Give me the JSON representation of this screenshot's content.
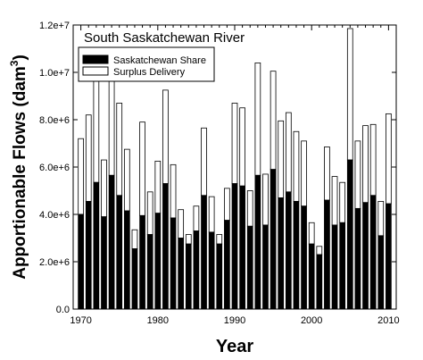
{
  "chart_data": {
    "type": "bar",
    "stacked": true,
    "title": "South Saskatchewan River",
    "xlabel": "Year",
    "ylabel_main": "Apportionable Flows (dam",
    "ylabel_sup": "3",
    "ylabel_end": ")",
    "xlim": [
      1969,
      2011
    ],
    "ylim": [
      0,
      12000000
    ],
    "x_ticks": [
      1970,
      1980,
      1990,
      2000,
      2010
    ],
    "x_tick_labels": [
      "1970",
      "1980",
      "1990",
      "2000",
      "2010"
    ],
    "y_ticks": [
      0,
      2000000,
      4000000,
      6000000,
      8000000,
      10000000,
      12000000
    ],
    "y_tick_labels": [
      "0.0",
      "2.0e+6",
      "4.0e+6",
      "6.0e+6",
      "8.0e+6",
      "1.0e+7",
      "1.2e+7"
    ],
    "grid": false,
    "legend_position": "top-left",
    "legend": [
      "Saskatchewan Share",
      "Surplus Delivery"
    ],
    "colors": {
      "saskatchewan_share": "#000000",
      "surplus_delivery": "#ffffff",
      "outline": "#000000"
    },
    "x": [
      1970,
      1971,
      1972,
      1973,
      1974,
      1975,
      1976,
      1977,
      1978,
      1979,
      1980,
      1981,
      1982,
      1983,
      1984,
      1985,
      1986,
      1987,
      1988,
      1989,
      1990,
      1991,
      1992,
      1993,
      1994,
      1995,
      1996,
      1997,
      1998,
      1999,
      2000,
      2001,
      2002,
      2003,
      2004,
      2005,
      2006,
      2007,
      2008,
      2009,
      2010
    ],
    "series": [
      {
        "name": "Saskatchewan Share",
        "values": [
          4000000,
          4550000,
          5350000,
          3900000,
          5650000,
          4800000,
          4150000,
          2550000,
          3950000,
          3150000,
          4050000,
          5300000,
          3850000,
          3000000,
          2750000,
          3300000,
          4800000,
          3250000,
          2750000,
          3750000,
          5300000,
          5200000,
          3500000,
          5650000,
          3550000,
          5900000,
          4700000,
          4950000,
          4550000,
          4350000,
          2750000,
          2300000,
          4600000,
          3550000,
          3650000,
          6300000,
          4250000,
          4500000,
          4800000,
          3100000,
          4450000
        ]
      },
      {
        "name": "Surplus Delivery",
        "values": [
          3200000,
          3650000,
          4450000,
          2400000,
          4150000,
          3900000,
          2600000,
          800000,
          3950000,
          1800000,
          2200000,
          3950000,
          2250000,
          1200000,
          400000,
          1050000,
          2850000,
          1500000,
          400000,
          1350000,
          3400000,
          3300000,
          1500000,
          4750000,
          2150000,
          4150000,
          3250000,
          3350000,
          2950000,
          2750000,
          900000,
          350000,
          2250000,
          2050000,
          1700000,
          5550000,
          2850000,
          3250000,
          3000000,
          1450000,
          3800000
        ]
      }
    ]
  }
}
